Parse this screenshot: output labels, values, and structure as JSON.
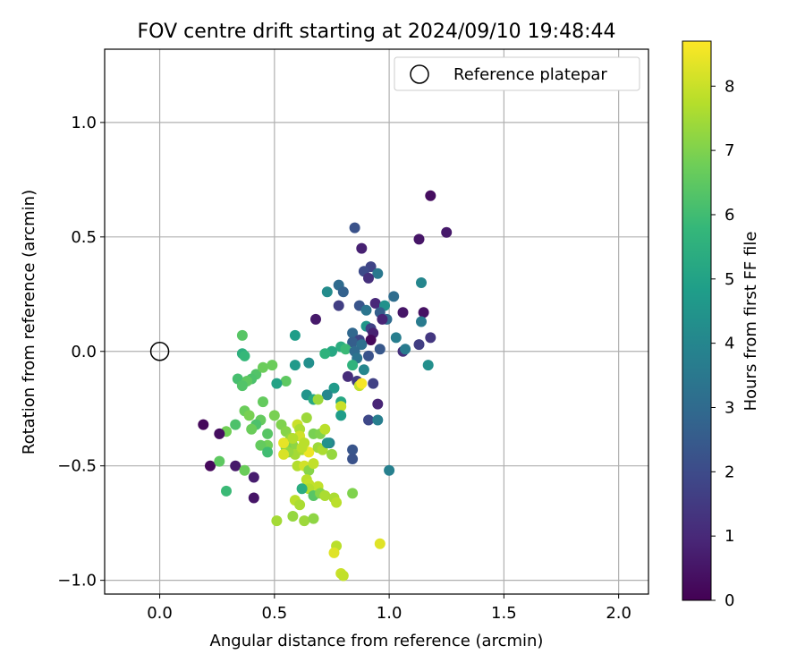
{
  "chart_data": {
    "type": "scatter",
    "title": "FOV centre drift starting at 2024/09/10 19:48:44",
    "xlabel": "Angular distance from reference (arcmin)",
    "ylabel": "Rotation from reference (arcmin)",
    "xlim": [
      -0.24,
      2.13
    ],
    "ylim": [
      -1.06,
      1.32
    ],
    "xticks": [
      0.0,
      0.5,
      1.0,
      1.5,
      2.0
    ],
    "xtick_labels": [
      "0.0",
      "0.5",
      "1.0",
      "1.5",
      "2.0"
    ],
    "yticks": [
      -1.0,
      -0.5,
      0.0,
      0.5,
      1.0
    ],
    "ytick_labels": [
      "−1.0",
      "−0.5",
      "0.0",
      "0.5",
      "1.0"
    ],
    "grid": true,
    "legend": {
      "placement": "top-right",
      "entries": [
        "Reference platepar"
      ]
    },
    "reference_point": {
      "x": 0.0,
      "y": 0.0,
      "label": "Reference platepar"
    },
    "colorbar": {
      "label": "Hours from first FF file",
      "min": 0,
      "max": 8.7,
      "ticks": [
        0,
        1,
        2,
        3,
        4,
        5,
        6,
        7,
        8
      ],
      "tick_labels": [
        "0",
        "1",
        "2",
        "3",
        "4",
        "5",
        "6",
        "7",
        "8"
      ],
      "colormap": "viridis",
      "colors": [
        "#440154",
        "#482878",
        "#3e4989",
        "#31688e",
        "#26828e",
        "#1f9e89",
        "#35b779",
        "#6ece58",
        "#b5de2b",
        "#fde725"
      ]
    },
    "points": [
      [
        1.18,
        0.68,
        0.3
      ],
      [
        1.25,
        0.52,
        0.6
      ],
      [
        1.13,
        0.49,
        0.5
      ],
      [
        0.85,
        0.54,
        2.2
      ],
      [
        0.88,
        0.45,
        0.8
      ],
      [
        0.92,
        0.37,
        1.8
      ],
      [
        0.89,
        0.35,
        2.0
      ],
      [
        0.95,
        0.34,
        3.5
      ],
      [
        0.91,
        0.32,
        1.2
      ],
      [
        0.78,
        0.29,
        3.0
      ],
      [
        0.73,
        0.26,
        4.2
      ],
      [
        0.8,
        0.26,
        2.7
      ],
      [
        1.14,
        0.3,
        4.0
      ],
      [
        1.02,
        0.24,
        3.1
      ],
      [
        0.87,
        0.2,
        2.3
      ],
      [
        0.94,
        0.21,
        1.0
      ],
      [
        0.78,
        0.2,
        1.6
      ],
      [
        0.98,
        0.2,
        4.4
      ],
      [
        0.96,
        0.17,
        2.6
      ],
      [
        1.06,
        0.17,
        0.5
      ],
      [
        1.15,
        0.17,
        0.4
      ],
      [
        0.9,
        0.18,
        3.4
      ],
      [
        0.99,
        0.14,
        3.0
      ],
      [
        0.97,
        0.14,
        0.9
      ],
      [
        0.68,
        0.14,
        0.6
      ],
      [
        1.14,
        0.13,
        3.6
      ],
      [
        0.9,
        0.11,
        4.6
      ],
      [
        0.92,
        0.1,
        1.7
      ],
      [
        0.93,
        0.08,
        0.8
      ],
      [
        0.84,
        0.08,
        2.9
      ],
      [
        0.87,
        0.05,
        1.8
      ],
      [
        0.92,
        0.05,
        0.2
      ],
      [
        1.03,
        0.06,
        3.7
      ],
      [
        1.18,
        0.06,
        1.4
      ],
      [
        0.59,
        0.07,
        4.8
      ],
      [
        0.84,
        0.04,
        2.6
      ],
      [
        0.88,
        0.03,
        3.2
      ],
      [
        0.79,
        0.02,
        5.4
      ],
      [
        0.81,
        0.01,
        5.9
      ],
      [
        0.75,
        0.0,
        5.2
      ],
      [
        0.72,
        -0.01,
        5.6
      ],
      [
        0.85,
        0.0,
        3.0
      ],
      [
        0.96,
        0.01,
        2.4
      ],
      [
        1.06,
        0.0,
        1.2
      ],
      [
        1.13,
        0.03,
        1.6
      ],
      [
        1.07,
        0.01,
        3.6
      ],
      [
        0.91,
        -0.02,
        2.2
      ],
      [
        0.86,
        -0.03,
        3.3
      ],
      [
        0.84,
        -0.06,
        5.6
      ],
      [
        0.89,
        -0.08,
        4.0
      ],
      [
        0.82,
        -0.11,
        1.1
      ],
      [
        0.86,
        -0.13,
        1.5
      ],
      [
        0.93,
        -0.14,
        1.7
      ],
      [
        1.17,
        -0.06,
        4.3
      ],
      [
        0.59,
        -0.06,
        4.7
      ],
      [
        0.65,
        -0.05,
        4.3
      ],
      [
        0.55,
        -0.13,
        6.5
      ],
      [
        0.51,
        -0.14,
        5.0
      ],
      [
        0.76,
        -0.16,
        4.7
      ],
      [
        0.64,
        -0.19,
        4.5
      ],
      [
        0.67,
        -0.21,
        5.2
      ],
      [
        0.73,
        -0.19,
        4.0
      ],
      [
        0.87,
        -0.15,
        7.9
      ],
      [
        0.95,
        -0.23,
        0.9
      ],
      [
        0.79,
        -0.22,
        5.2
      ],
      [
        0.69,
        -0.21,
        7.4
      ],
      [
        0.79,
        -0.24,
        8.0
      ],
      [
        0.91,
        -0.3,
        1.9
      ],
      [
        0.95,
        -0.3,
        3.7
      ],
      [
        0.79,
        -0.28,
        4.8
      ],
      [
        0.36,
        0.07,
        6.4
      ],
      [
        0.36,
        -0.01,
        5.5
      ],
      [
        0.37,
        -0.02,
        5.8
      ],
      [
        0.42,
        -0.1,
        6.3
      ],
      [
        0.45,
        -0.07,
        6.7
      ],
      [
        0.49,
        -0.06,
        6.7
      ],
      [
        0.4,
        -0.12,
        6.2
      ],
      [
        0.34,
        -0.12,
        6.1
      ],
      [
        0.38,
        -0.13,
        6.5
      ],
      [
        0.36,
        -0.15,
        6.3
      ],
      [
        0.45,
        -0.22,
        6.6
      ],
      [
        0.37,
        -0.26,
        6.7
      ],
      [
        0.39,
        -0.28,
        6.9
      ],
      [
        0.44,
        -0.3,
        6.6
      ],
      [
        0.42,
        -0.32,
        6.2
      ],
      [
        0.33,
        -0.32,
        6.2
      ],
      [
        0.4,
        -0.34,
        6.7
      ],
      [
        0.5,
        -0.28,
        6.9
      ],
      [
        0.47,
        -0.36,
        6.4
      ],
      [
        0.29,
        -0.35,
        6.8
      ],
      [
        0.26,
        -0.36,
        0.3
      ],
      [
        0.47,
        -0.41,
        6.8
      ],
      [
        0.44,
        -0.41,
        6.6
      ],
      [
        0.47,
        -0.44,
        6.0
      ],
      [
        0.19,
        -0.32,
        0.2
      ],
      [
        0.22,
        -0.5,
        0.2
      ],
      [
        0.26,
        -0.48,
        6.5
      ],
      [
        0.33,
        -0.5,
        0.6
      ],
      [
        0.37,
        -0.52,
        6.7
      ],
      [
        0.41,
        -0.55,
        0.7
      ],
      [
        0.29,
        -0.61,
        5.9
      ],
      [
        0.41,
        -0.64,
        0.5
      ],
      [
        0.53,
        -0.32,
        7.0
      ],
      [
        0.55,
        -0.35,
        7.1
      ],
      [
        0.57,
        -0.38,
        7.3
      ],
      [
        0.6,
        -0.32,
        8.0
      ],
      [
        0.61,
        -0.34,
        7.6
      ],
      [
        0.64,
        -0.29,
        7.4
      ],
      [
        0.58,
        -0.41,
        7.2
      ],
      [
        0.55,
        -0.42,
        7.0
      ],
      [
        0.59,
        -0.45,
        7.5
      ],
      [
        0.62,
        -0.43,
        7.6
      ],
      [
        0.56,
        -0.44,
        7.3
      ],
      [
        0.54,
        -0.4,
        8.4
      ],
      [
        0.54,
        -0.45,
        8.2
      ],
      [
        0.61,
        -0.37,
        8.1
      ],
      [
        0.63,
        -0.4,
        7.8
      ],
      [
        0.65,
        -0.44,
        8.5
      ],
      [
        0.67,
        -0.36,
        6.9
      ],
      [
        0.7,
        -0.36,
        7.0
      ],
      [
        0.72,
        -0.34,
        7.8
      ],
      [
        0.69,
        -0.42,
        7.4
      ],
      [
        0.71,
        -0.43,
        7.6
      ],
      [
        0.74,
        -0.4,
        3.9
      ],
      [
        0.75,
        -0.45,
        7.3
      ],
      [
        0.6,
        -0.5,
        7.7
      ],
      [
        0.63,
        -0.5,
        8.1
      ],
      [
        0.65,
        -0.52,
        7.1
      ],
      [
        0.67,
        -0.49,
        7.9
      ],
      [
        0.64,
        -0.56,
        7.8
      ],
      [
        0.65,
        -0.58,
        7.9
      ],
      [
        0.69,
        -0.59,
        7.9
      ],
      [
        0.65,
        -0.6,
        7.7
      ],
      [
        0.62,
        -0.6,
        5.4
      ],
      [
        0.67,
        -0.63,
        6.4
      ],
      [
        0.7,
        -0.62,
        7.1
      ],
      [
        0.72,
        -0.63,
        7.6
      ],
      [
        0.76,
        -0.64,
        7.6
      ],
      [
        0.77,
        -0.66,
        7.8
      ],
      [
        0.84,
        -0.62,
        7.0
      ],
      [
        0.59,
        -0.65,
        7.8
      ],
      [
        0.61,
        -0.67,
        7.6
      ],
      [
        0.58,
        -0.72,
        7.3
      ],
      [
        0.63,
        -0.74,
        7.4
      ],
      [
        0.67,
        -0.73,
        7.2
      ],
      [
        0.51,
        -0.74,
        7.5
      ],
      [
        0.77,
        -0.85,
        7.8
      ],
      [
        0.76,
        -0.88,
        8.3
      ],
      [
        0.79,
        -0.97,
        8.0
      ],
      [
        0.8,
        -0.98,
        7.9
      ],
      [
        0.96,
        -0.84,
        8.3
      ],
      [
        0.84,
        -0.43,
        2.3
      ],
      [
        0.84,
        -0.47,
        2.2
      ],
      [
        0.73,
        -0.4,
        4.4
      ],
      [
        1.0,
        -0.52,
        3.8
      ],
      [
        0.88,
        -0.14,
        8.6
      ],
      [
        0.58,
        -0.38,
        7.7
      ],
      [
        0.62,
        -0.42,
        7.8
      ]
    ]
  }
}
